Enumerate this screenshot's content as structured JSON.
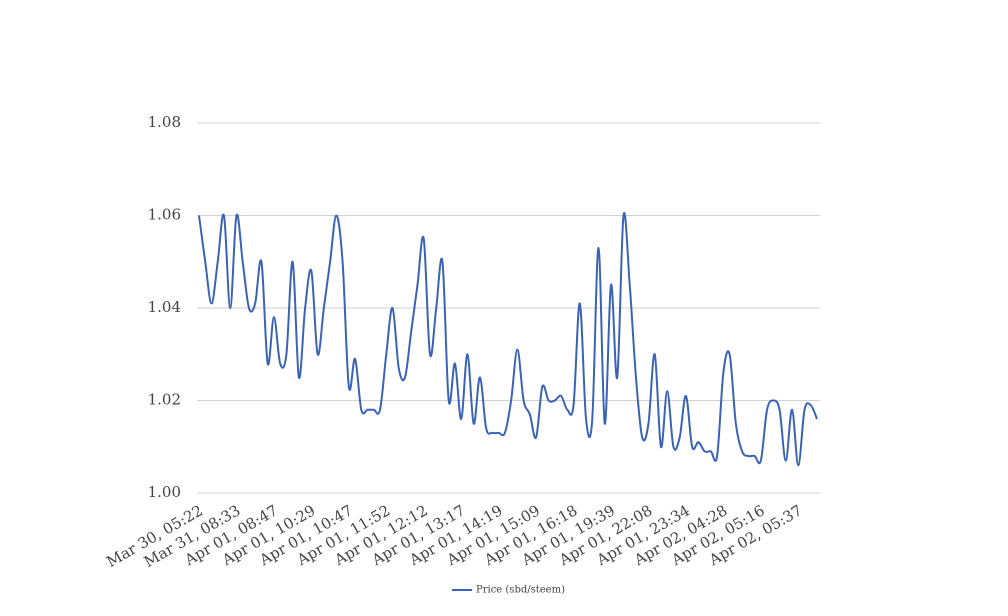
{
  "chart_data": {
    "type": "line",
    "categories": [
      "Mar 30, 05:22",
      null,
      null,
      null,
      null,
      null,
      "Mar 31, 08:33",
      null,
      null,
      null,
      null,
      null,
      "Apr 01, 08:47",
      null,
      null,
      null,
      null,
      null,
      "Apr 01, 10:29",
      null,
      null,
      null,
      null,
      null,
      "Apr 01, 10:47",
      null,
      null,
      null,
      null,
      null,
      "Apr 01, 11:52",
      null,
      null,
      null,
      null,
      null,
      "Apr 01, 12:12",
      null,
      null,
      null,
      null,
      null,
      "Apr 01, 13:17",
      null,
      null,
      null,
      null,
      null,
      "Apr 01, 14:19",
      null,
      null,
      null,
      null,
      null,
      "Apr 01, 15:09",
      null,
      null,
      null,
      null,
      null,
      "Apr 01, 16:18",
      null,
      null,
      null,
      null,
      null,
      "Apr 01, 19:39",
      null,
      null,
      null,
      null,
      null,
      "Apr 01, 22:08",
      null,
      null,
      null,
      null,
      null,
      "Apr 01, 23:34",
      null,
      null,
      null,
      null,
      null,
      "Apr 02, 04:28",
      null,
      null,
      null,
      null,
      null,
      "Apr 02, 05:16",
      null,
      null,
      null,
      null,
      null,
      "Apr 02, 05:37",
      null,
      null,
      null
    ],
    "series": [
      {
        "name": "Price (sbd/steem)",
        "color": "#3a63b8",
        "values": [
          1.06,
          1.05,
          1.041,
          1.05,
          1.06,
          1.04,
          1.06,
          1.05,
          1.04,
          1.041,
          1.05,
          1.028,
          1.038,
          1.028,
          1.03,
          1.05,
          1.025,
          1.04,
          1.048,
          1.03,
          1.04,
          1.05,
          1.06,
          1.05,
          1.023,
          1.029,
          1.018,
          1.018,
          1.018,
          1.018,
          1.03,
          1.04,
          1.027,
          1.025,
          1.035,
          1.045,
          1.055,
          1.03,
          1.04,
          1.05,
          1.02,
          1.028,
          1.016,
          1.03,
          1.015,
          1.025,
          1.014,
          1.013,
          1.013,
          1.013,
          1.02,
          1.031,
          1.02,
          1.017,
          1.012,
          1.023,
          1.02,
          1.02,
          1.021,
          1.018,
          1.019,
          1.041,
          1.016,
          1.016,
          1.053,
          1.015,
          1.045,
          1.025,
          1.06,
          1.045,
          1.025,
          1.012,
          1.015,
          1.03,
          1.01,
          1.022,
          1.01,
          1.012,
          1.021,
          1.01,
          1.011,
          1.009,
          1.009,
          1.008,
          1.026,
          1.03,
          1.015,
          1.009,
          1.008,
          1.008,
          1.007,
          1.018,
          1.02,
          1.018,
          1.007,
          1.018,
          1.006,
          1.018,
          1.019,
          1.016
        ]
      }
    ],
    "ylim": [
      1.0,
      1.08
    ],
    "yticks": [
      {
        "value": 1.0,
        "label": "1.00"
      },
      1.02,
      1.04,
      1.06,
      1.08
    ],
    "grid": true,
    "legend": "bottom"
  }
}
